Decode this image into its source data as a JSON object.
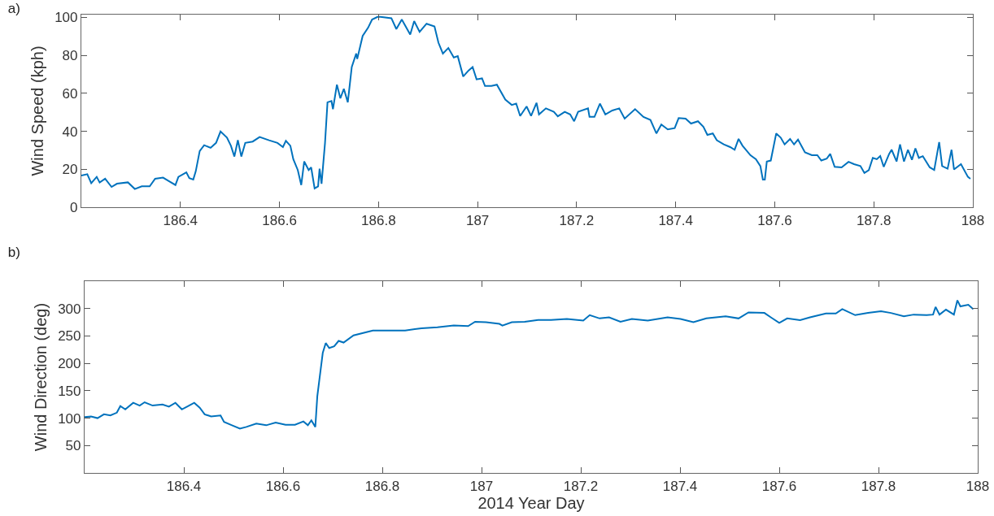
{
  "chart_data": [
    {
      "type": "line",
      "title": "a)",
      "ylabel": "Wind Speed (kph)",
      "xlim": [
        186.2,
        188
      ],
      "xticks": [
        186.4,
        186.6,
        186.8,
        187,
        187.2,
        187.4,
        187.6,
        187.8,
        188
      ],
      "ylim": [
        0,
        101.5
      ],
      "yticks": [
        0,
        20,
        40,
        60,
        80,
        100
      ],
      "grid": false,
      "marker": "none",
      "line_style": "solid",
      "series": [
        {
          "color": "#0072bd",
          "x": [
            186.2,
            186.212,
            186.22,
            186.231,
            186.237,
            186.248,
            186.261,
            186.272,
            186.294,
            186.308,
            186.322,
            186.338,
            186.349,
            186.365,
            186.376,
            186.39,
            186.396,
            186.412,
            186.418,
            186.426,
            186.431,
            186.439,
            186.448,
            186.461,
            186.472,
            186.481,
            186.494,
            186.502,
            186.509,
            186.516,
            186.523,
            186.531,
            186.546,
            186.56,
            186.579,
            186.596,
            186.607,
            186.613,
            186.622,
            186.628,
            186.637,
            186.644,
            186.65,
            186.659,
            186.664,
            186.671,
            186.678,
            186.681,
            186.685,
            186.692,
            186.697,
            186.705,
            186.708,
            186.716,
            186.723,
            186.73,
            186.738,
            186.746,
            186.755,
            186.757,
            186.768,
            186.779,
            186.787,
            186.798,
            186.804,
            186.826,
            186.836,
            186.847,
            186.864,
            186.872,
            186.883,
            186.897,
            186.913,
            186.921,
            186.93,
            186.941,
            186.952,
            186.96,
            186.971,
            186.982,
            186.99,
            186.998,
            187.009,
            187.015,
            187.028,
            187.039,
            187.056,
            187.069,
            187.078,
            187.086,
            187.099,
            187.108,
            187.119,
            187.124,
            187.138,
            187.154,
            187.162,
            187.176,
            187.187,
            187.195,
            187.203,
            187.223,
            187.226,
            187.236,
            187.247,
            187.258,
            187.272,
            187.286,
            187.297,
            187.318,
            187.335,
            187.349,
            187.361,
            187.371,
            187.384,
            187.398,
            187.406,
            187.42,
            187.431,
            187.445,
            187.456,
            187.464,
            187.475,
            187.483,
            187.497,
            187.51,
            187.519,
            187.527,
            187.535,
            187.551,
            187.562,
            187.571,
            187.576,
            187.58,
            187.584,
            187.592,
            187.603,
            187.612,
            187.62,
            187.631,
            187.639,
            187.647,
            187.661,
            187.675,
            187.686,
            187.694,
            187.705,
            187.712,
            187.721,
            187.735,
            187.749,
            187.76,
            187.773,
            187.781,
            187.79,
            187.798,
            187.806,
            187.813,
            187.82,
            187.831,
            187.836,
            187.846,
            187.853,
            187.861,
            187.869,
            187.877,
            187.884,
            187.891,
            187.899,
            187.913,
            187.922,
            187.932,
            187.938,
            187.949,
            187.957,
            187.962,
            187.976,
            187.99,
            187.995
          ],
          "values": [
            16.7,
            17.4,
            12.7,
            16,
            13,
            15,
            10.7,
            12.4,
            13.1,
            9.6,
            11,
            11,
            15,
            15.6,
            13.9,
            11.7,
            16,
            18.4,
            15.3,
            14.6,
            18.9,
            29.6,
            32.7,
            31.3,
            33.9,
            39.9,
            36.7,
            32.4,
            26.7,
            35.3,
            26.7,
            33.9,
            34.6,
            37,
            35.3,
            33.9,
            31.7,
            35,
            32.4,
            25.3,
            19.6,
            11.7,
            24.1,
            19.6,
            21,
            9.9,
            11,
            20.3,
            12.4,
            33.9,
            55.3,
            56,
            51.7,
            64.6,
            57.4,
            62.4,
            55.3,
            73.9,
            81,
            78.1,
            90.3,
            94.6,
            98.9,
            100.3,
            100.3,
            99.6,
            93.9,
            98.9,
            91,
            98.1,
            92.4,
            96.7,
            95.3,
            86.7,
            81,
            83.9,
            78.9,
            79.6,
            68.9,
            72.1,
            73.9,
            67.4,
            67.9,
            63.9,
            63.9,
            64.6,
            56.7,
            53.9,
            54.6,
            48.1,
            53.1,
            48.1,
            55,
            48.9,
            52.1,
            50.3,
            47.9,
            50.3,
            48.9,
            45.3,
            50.3,
            52.1,
            47.6,
            47.6,
            54.6,
            48.9,
            51,
            52.1,
            46.7,
            51.7,
            47.6,
            46,
            38.9,
            43.6,
            41,
            41.7,
            47,
            46.7,
            44.1,
            45.3,
            42.4,
            38.1,
            38.9,
            35.3,
            33.1,
            31.7,
            30.3,
            36,
            32.4,
            27.4,
            25.3,
            21.7,
            14.6,
            14.6,
            24.1,
            24.6,
            38.9,
            36.7,
            33.1,
            36,
            33.1,
            35.6,
            28.9,
            27.4,
            27.4,
            24.6,
            25.6,
            28.1,
            21.3,
            21,
            23.9,
            22.7,
            21.7,
            18.1,
            19.6,
            26,
            25.3,
            27,
            21.3,
            28.1,
            30.3,
            24.1,
            33.1,
            24.1,
            30.3,
            25,
            31,
            26,
            26.9,
            21,
            19.6,
            34.3,
            21.7,
            20.3,
            30.3,
            19.9,
            22.7,
            16,
            15
          ]
        }
      ]
    },
    {
      "type": "line",
      "title": "b)",
      "xlabel": "2014 Year Day",
      "ylabel": "Wind Direction (deg)",
      "xlim": [
        186.2,
        188
      ],
      "xticks": [
        186.4,
        186.6,
        186.8,
        187,
        187.2,
        187.4,
        187.6,
        187.8,
        188
      ],
      "ylim": [
        0,
        350
      ],
      "yticks": [
        50,
        100,
        150,
        200,
        250,
        300
      ],
      "grid": false,
      "marker": "none",
      "line_style": "solid",
      "series": [
        {
          "color": "#0072bd",
          "x": [
            186.2,
            186.213,
            186.226,
            186.239,
            186.252,
            186.265,
            186.272,
            186.282,
            186.298,
            186.311,
            186.321,
            186.337,
            186.357,
            186.37,
            186.383,
            186.396,
            186.409,
            186.421,
            186.432,
            186.442,
            186.455,
            186.474,
            186.481,
            186.497,
            186.513,
            186.526,
            186.546,
            186.566,
            186.585,
            186.605,
            186.624,
            186.641,
            186.65,
            186.657,
            186.665,
            186.669,
            186.673,
            186.68,
            186.686,
            186.693,
            186.703,
            186.712,
            186.722,
            186.742,
            186.768,
            186.781,
            186.814,
            186.846,
            186.879,
            186.911,
            186.944,
            186.973,
            186.987,
            187.009,
            187.036,
            187.042,
            187.061,
            187.087,
            187.114,
            187.14,
            187.172,
            187.205,
            187.218,
            187.238,
            187.257,
            187.28,
            187.303,
            187.335,
            187.375,
            187.401,
            187.427,
            187.453,
            187.492,
            187.518,
            187.538,
            187.57,
            187.583,
            187.6,
            187.616,
            187.642,
            187.662,
            187.694,
            187.714,
            187.727,
            187.753,
            187.779,
            187.805,
            187.825,
            187.851,
            187.871,
            187.897,
            187.91,
            187.915,
            187.923,
            187.936,
            187.952,
            187.959,
            187.965,
            187.981,
            187.991
          ],
          "values": [
            102,
            103,
            100,
            107,
            105,
            110,
            122,
            116,
            128,
            123,
            129,
            123,
            125,
            121,
            128,
            116,
            122,
            128,
            119,
            107,
            103,
            105,
            93,
            87,
            81,
            84,
            90,
            87,
            92,
            88,
            88,
            94,
            87,
            96,
            84,
            140,
            169,
            219,
            237,
            228,
            231,
            241,
            238,
            251,
            257,
            260,
            260,
            260,
            264,
            266,
            269,
            268,
            276,
            275,
            272,
            269,
            275,
            276,
            279,
            279,
            281,
            278,
            288,
            282,
            284,
            276,
            281,
            278,
            284,
            281,
            275,
            282,
            286,
            282,
            293,
            292,
            284,
            274,
            282,
            279,
            284,
            291,
            291,
            299,
            288,
            292,
            295,
            292,
            286,
            289,
            288,
            289,
            303,
            289,
            298,
            289,
            315,
            304,
            307,
            299
          ]
        }
      ]
    }
  ]
}
